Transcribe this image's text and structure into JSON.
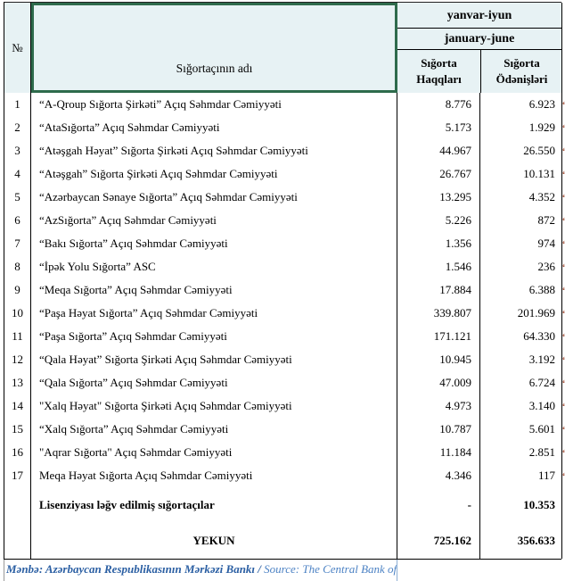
{
  "header": {
    "no_label": "№",
    "name_label": "Sığortaçının adı",
    "period_az": "yanvar-iyun",
    "period_en": "january-june",
    "col_premiums": "Sığorta Haqqları",
    "col_payments": "Sığorta Ödənişləri"
  },
  "rows": [
    {
      "no": "1",
      "name": "“A-Qroup Sığorta Şirkəti” Açıq Səhmdar Cəmiyyəti",
      "premiums": "8.776",
      "payments": "6.923"
    },
    {
      "no": "2",
      "name": "“AtaSığorta” Açıq Səhmdar Cəmiyyəti",
      "premiums": "5.173",
      "payments": "1.929"
    },
    {
      "no": "3",
      "name": "“Atəşgah Həyat” Sığorta Şirkəti Açıq Səhmdar Cəmiyyəti",
      "premiums": "44.967",
      "payments": "26.550"
    },
    {
      "no": "4",
      "name": "“Atəşgah” Sığorta Şirkəti Açıq Səhmdar Cəmiyyəti",
      "premiums": "26.767",
      "payments": "10.131"
    },
    {
      "no": "5",
      "name": "“Azərbaycan Sənaye Sığorta” Açıq Səhmdar Cəmiyyəti",
      "premiums": "13.295",
      "payments": "4.352"
    },
    {
      "no": "6",
      "name": "“AzSığorta” Açıq Səhmdar Cəmiyyəti",
      "premiums": "5.226",
      "payments": "872"
    },
    {
      "no": "7",
      "name": "“Bakı Sığorta” Açıq Səhmdar Cəmiyyəti",
      "premiums": "1.356",
      "payments": "974"
    },
    {
      "no": "8",
      "name": "“İpək Yolu Sığorta” ASC",
      "premiums": "1.546",
      "payments": "236"
    },
    {
      "no": "9",
      "name": "“Meqa Sığorta” Açıq Səhmdar Cəmiyyəti",
      "premiums": "17.884",
      "payments": "6.388"
    },
    {
      "no": "10",
      "name": "“Paşa Həyat Sığorta” Açıq Səhmdar Cəmiyyəti",
      "premiums": "339.807",
      "payments": "201.969"
    },
    {
      "no": "11",
      "name": "“Paşa Sığorta” Açıq Səhmdar Cəmiyyəti",
      "premiums": "171.121",
      "payments": "64.330"
    },
    {
      "no": "12",
      "name": "“Qala Həyat” Sığorta Şirkəti Açıq Səhmdar Cəmiyyəti",
      "premiums": "10.945",
      "payments": "3.192"
    },
    {
      "no": "13",
      "name": "“Qala Sığorta” Açıq Səhmdar Cəmiyyəti",
      "premiums": "47.009",
      "payments": "6.724"
    },
    {
      "no": "14",
      "name": "\"Xalq Həyat\" Sığorta Şirkəti Açıq Səhmdar Cəmiyyəti",
      "premiums": "4.973",
      "payments": "3.140"
    },
    {
      "no": "15",
      "name": "“Xalq Sığorta” Açıq Səhmdar Cəmiyyəti",
      "premiums": "10.787",
      "payments": "5.601"
    },
    {
      "no": "16",
      "name": "\"Aqrar Sığorta\" Açıq Səhmdar Cəmiyyəti",
      "premiums": "11.184",
      "payments": "2.851"
    },
    {
      "no": "17",
      "name": "Meqa Həyat Sığorta Açıq Səhmdar Cəmiyyəti",
      "premiums": "4.346",
      "payments": "117"
    }
  ],
  "special_rows": {
    "revoked": {
      "name": "Lisenziyası ləğv edilmiş sığortaçılar",
      "premiums": "-",
      "payments": "10.353"
    },
    "total": {
      "name": "YEKUN",
      "premiums": "725.162",
      "payments": "356.633"
    }
  },
  "footer": {
    "source_az": "Mənbə: Azərbaycan Respublikasının Mərkəzi Bankı / ",
    "source_en": "Source: The Central Bank of the Rep"
  },
  "decoration": {
    "clipped_glyph": "“"
  },
  "colors": {
    "header_bg": "#E7F2F4",
    "green_border": "#2E6B4C",
    "source_az_blue": "#2B5FA3",
    "source_en_blue": "#4C82C4"
  }
}
